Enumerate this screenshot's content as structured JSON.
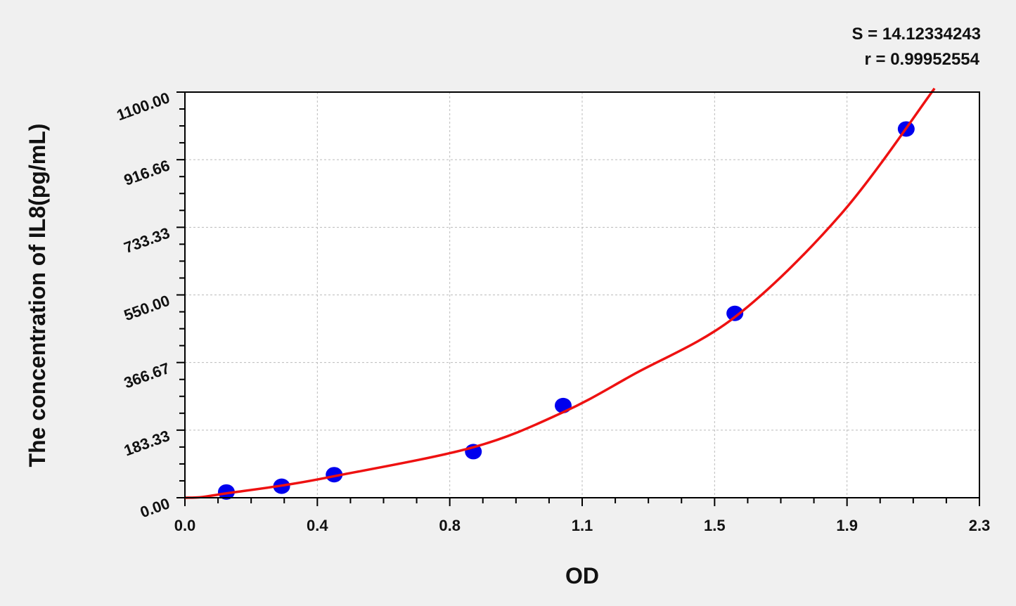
{
  "chart_data": {
    "type": "scatter",
    "xlabel": "OD",
    "ylabel": "The concentration of IL8(pg/mL)",
    "xlim": [
      0,
      2.3
    ],
    "ylim": [
      0,
      1100
    ],
    "x_ticks": [
      "0.0",
      "0.4",
      "0.8",
      "1.1",
      "1.5",
      "1.9",
      "2.3"
    ],
    "y_ticks": [
      "0.00",
      "183.33",
      "366.67",
      "550.00",
      "733.33",
      "916.66",
      "1100.00"
    ],
    "grid": true,
    "annotations": [
      "S = 14.12334243",
      "r = 0.99952554"
    ],
    "points": [
      {
        "x": 0.12,
        "y": 15.6
      },
      {
        "x": 0.28,
        "y": 31.25
      },
      {
        "x": 0.432,
        "y": 62.5
      },
      {
        "x": 0.835,
        "y": 125
      },
      {
        "x": 1.095,
        "y": 250
      },
      {
        "x": 1.592,
        "y": 500
      },
      {
        "x": 2.088,
        "y": 1000
      }
    ],
    "fit_curve": [
      {
        "x": 0.0,
        "y": 0
      },
      {
        "x": 0.05,
        "y": 2
      },
      {
        "x": 0.12,
        "y": 12
      },
      {
        "x": 0.28,
        "y": 33
      },
      {
        "x": 0.43,
        "y": 58
      },
      {
        "x": 0.835,
        "y": 137
      },
      {
        "x": 1.095,
        "y": 232
      },
      {
        "x": 1.3,
        "y": 335
      },
      {
        "x": 1.592,
        "y": 490
      },
      {
        "x": 1.9,
        "y": 770
      },
      {
        "x": 2.17,
        "y": 1110
      }
    ],
    "colors": {
      "points": "#0000ee",
      "curve": "#ee1111",
      "grid": "#bbbbbb",
      "background": "#f0f0f0"
    }
  }
}
